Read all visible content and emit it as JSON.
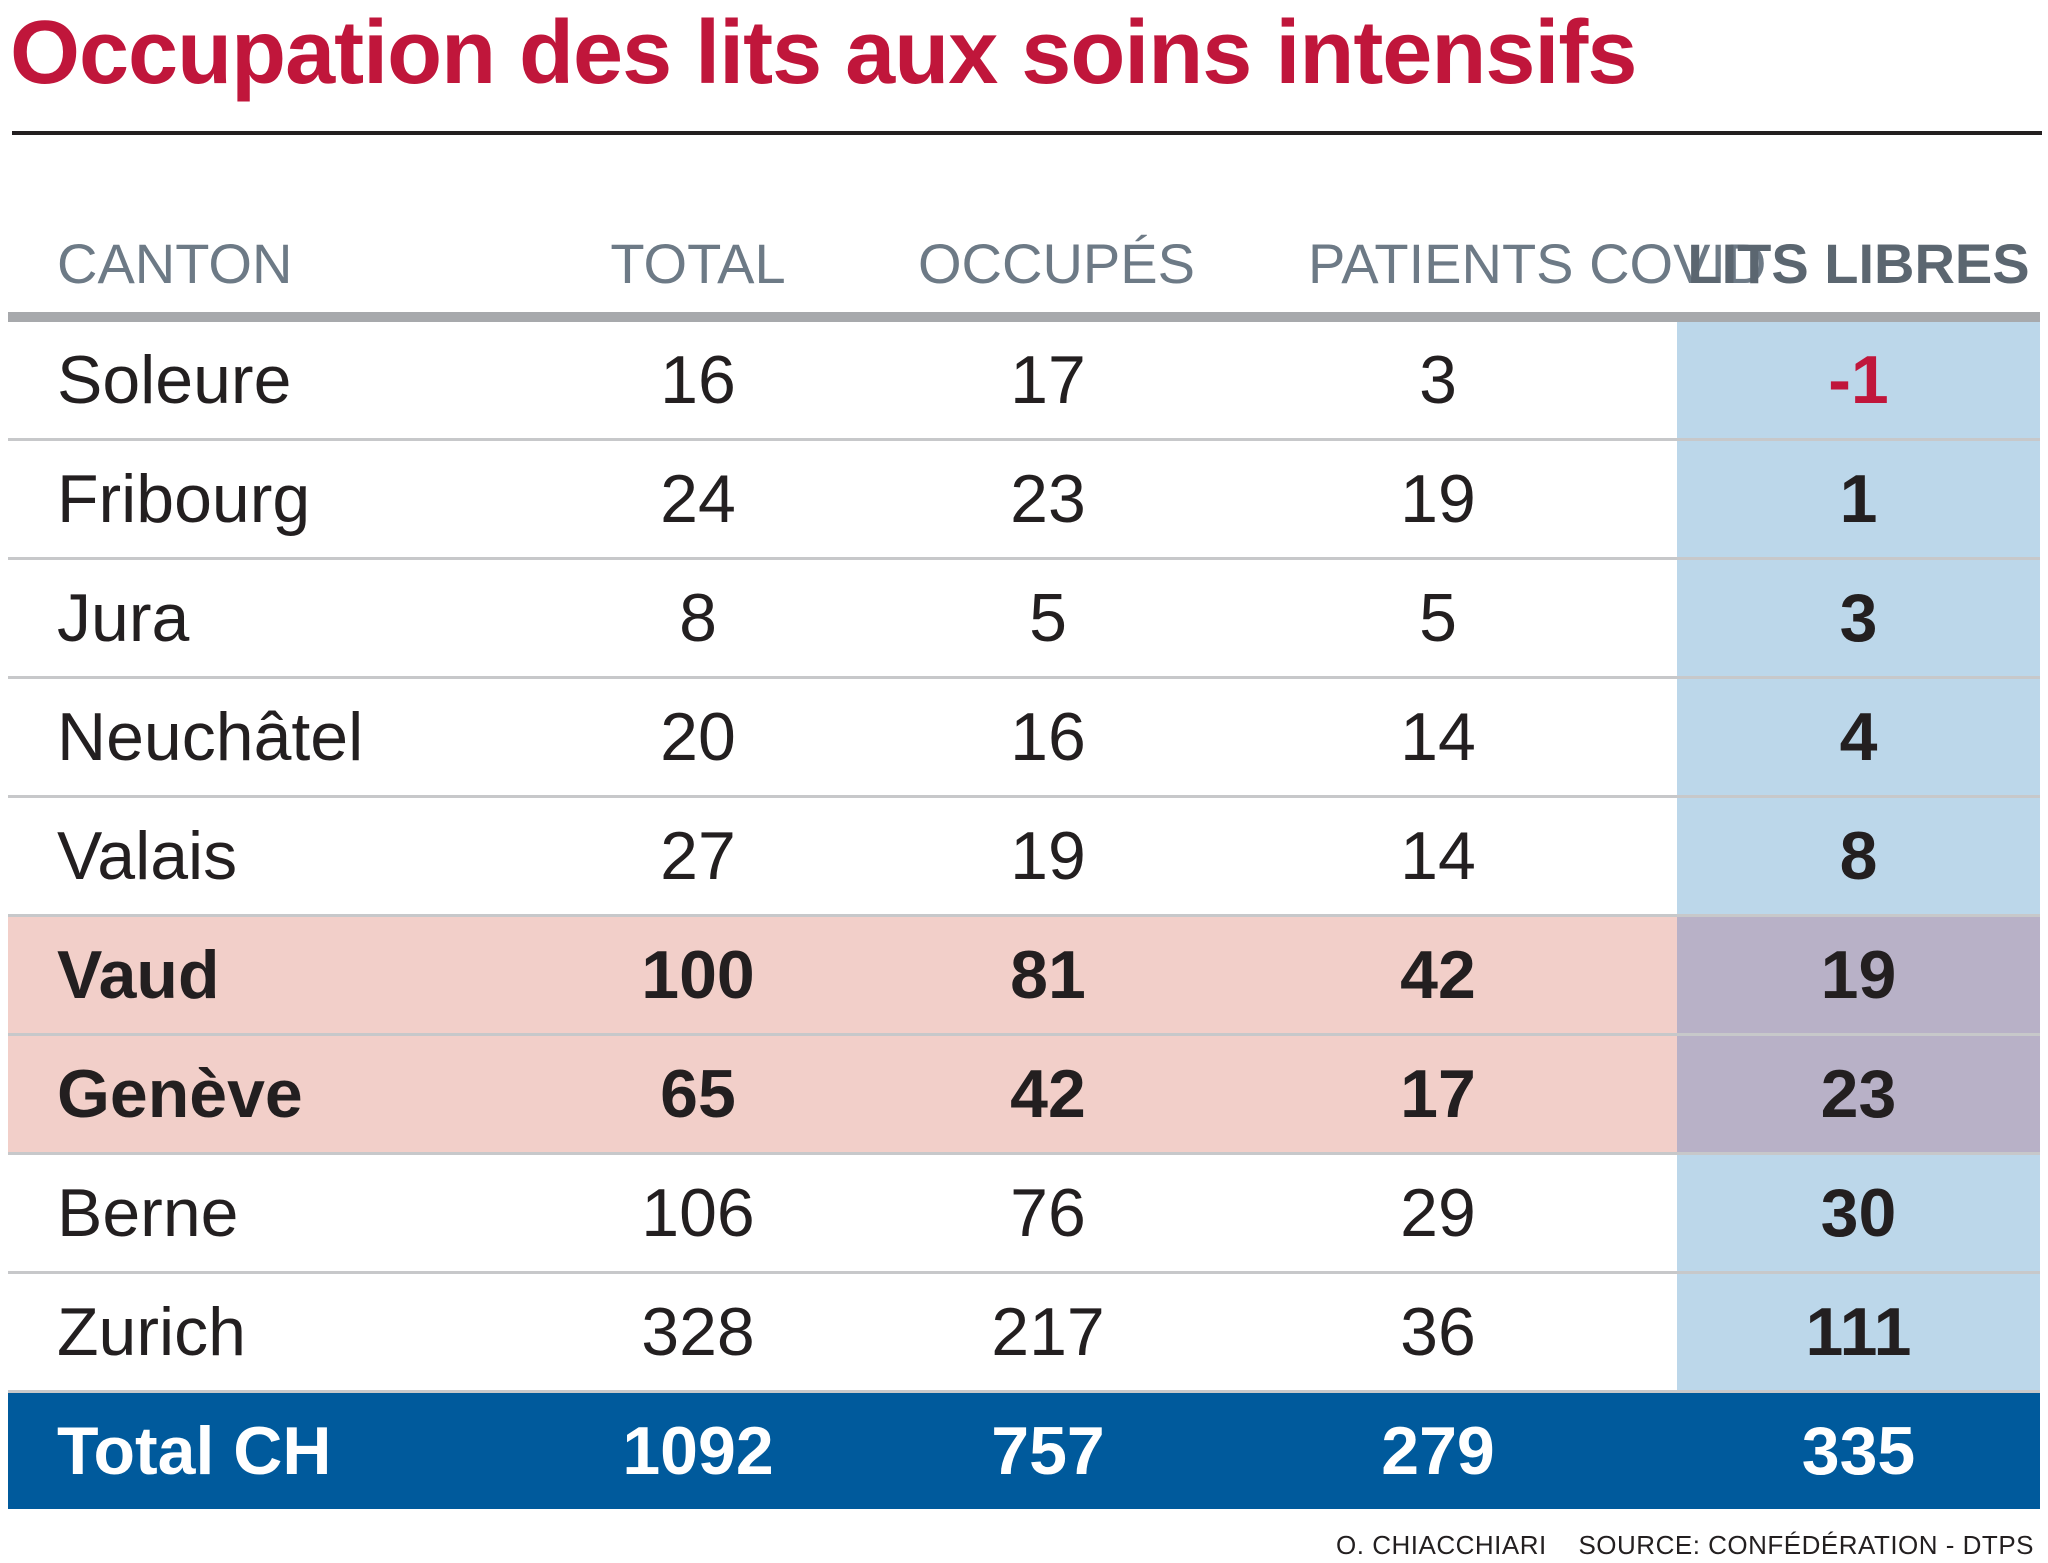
{
  "title": "Occupation des lits aux soins intensifs",
  "credit": {
    "author": "O. CHIACCHIARI",
    "source": "SOURCE: CONFÉDÉRATION - DTPS"
  },
  "colors": {
    "title": "#c0163b",
    "highlight_row": "#f2cfc9",
    "libres_column": "#bcd7ea",
    "libres_highlight": "#b8b1c7",
    "total_row": "#005a9c",
    "negative": "#c0163b"
  },
  "chart_data": {
    "type": "table",
    "title": "Occupation des lits aux soins intensifs",
    "columns": [
      "CANTON",
      "TOTAL",
      "OCCUPÉS",
      "PATIENTS COVID",
      "LITS LIBRES"
    ],
    "rows": [
      {
        "canton": "Soleure",
        "total": "16",
        "occupes": "17",
        "covid": "3",
        "libres": "-1",
        "highlight": false
      },
      {
        "canton": "Fribourg",
        "total": "24",
        "occupes": "23",
        "covid": "19",
        "libres": "1",
        "highlight": false
      },
      {
        "canton": "Jura",
        "total": "8",
        "occupes": "5",
        "covid": "5",
        "libres": "3",
        "highlight": false
      },
      {
        "canton": "Neuchâtel",
        "total": "20",
        "occupes": "16",
        "covid": "14",
        "libres": "4",
        "highlight": false
      },
      {
        "canton": "Valais",
        "total": "27",
        "occupes": "19",
        "covid": "14",
        "libres": "8",
        "highlight": false
      },
      {
        "canton": "Vaud",
        "total": "100",
        "occupes": "81",
        "covid": "42",
        "libres": "19",
        "highlight": true
      },
      {
        "canton": "Genève",
        "total": "65",
        "occupes": "42",
        "covid": "17",
        "libres": "23",
        "highlight": true
      },
      {
        "canton": "Berne",
        "total": "106",
        "occupes": "76",
        "covid": "29",
        "libres": "30",
        "highlight": false
      },
      {
        "canton": "Zurich",
        "total": "328",
        "occupes": "217",
        "covid": "36",
        "libres": "111",
        "highlight": false
      }
    ],
    "total_row": {
      "canton": "Total CH",
      "total": "1092",
      "occupes": "757",
      "covid": "279",
      "libres": "335"
    }
  }
}
